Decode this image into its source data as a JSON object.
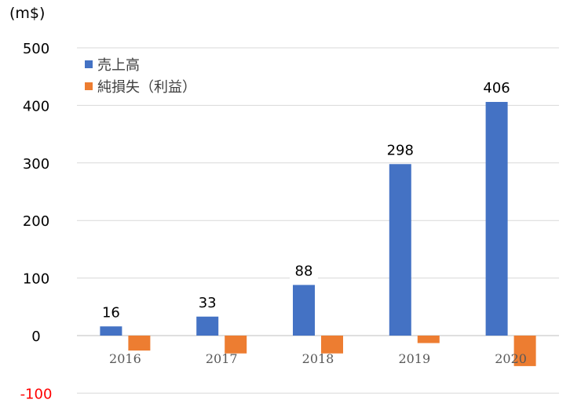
{
  "unit_label": "(m$)",
  "legend": [
    {
      "label": "売上高",
      "color": "#4472C4"
    },
    {
      "label": "純損失（利益）",
      "color": "#ED7D31"
    }
  ],
  "chart_data": {
    "type": "bar",
    "categories": [
      "2016",
      "2017",
      "2018",
      "2019",
      "2020"
    ],
    "series": [
      {
        "name": "売上高",
        "color": "#4472C4",
        "values": [
          16,
          33,
          88,
          298,
          406
        ],
        "labels": [
          "16",
          "33",
          "88",
          "298",
          "406"
        ]
      },
      {
        "name": "純損失（利益）",
        "color": "#ED7D31",
        "values": [
          -26,
          -31,
          -31,
          -13,
          -53
        ]
      }
    ],
    "yticks": [
      500,
      400,
      300,
      200,
      100,
      0,
      -100
    ],
    "ytick_labels": [
      "500",
      "400",
      "300",
      "200",
      "100",
      "0",
      "-100"
    ],
    "negative_tick_color": "#FF0000",
    "ylim": [
      -100,
      500
    ],
    "grid": true,
    "legend_position": "top-left"
  }
}
